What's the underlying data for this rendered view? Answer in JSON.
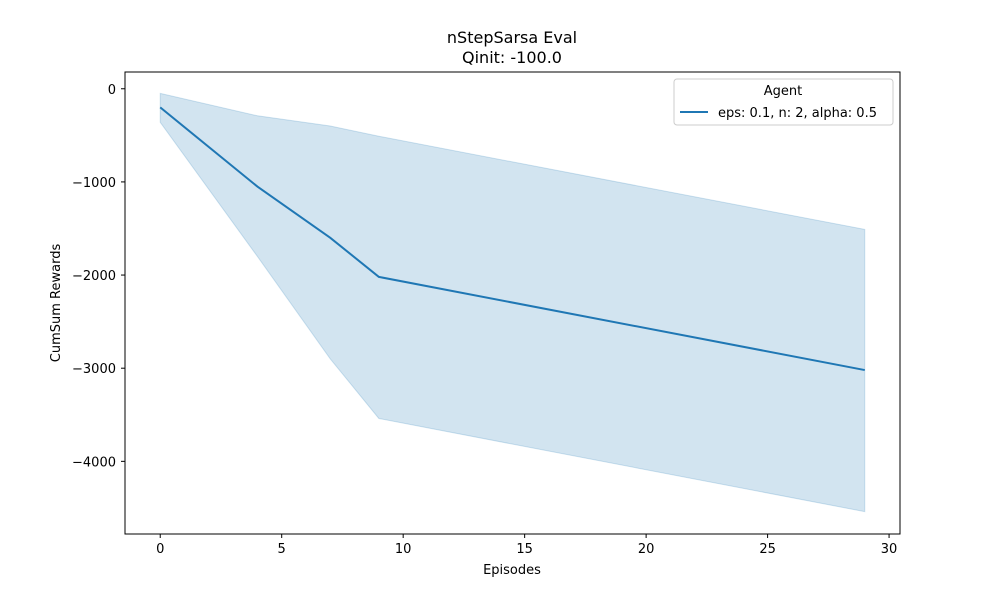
{
  "chart_data": {
    "type": "line",
    "title": "nStepSarsa Eval",
    "subtitle": "Qinit: -100.0",
    "xlabel": "Episodes",
    "ylabel": "CumSum Rewards",
    "xlim": [
      -1.45,
      30.45
    ],
    "ylim": [
      -4780,
      180
    ],
    "xticks": [
      0,
      5,
      10,
      15,
      20,
      25,
      30
    ],
    "yticks": [
      0,
      -1000,
      -2000,
      -3000,
      -4000
    ],
    "xtick_labels": [
      "0",
      "5",
      "10",
      "15",
      "20",
      "25",
      "30"
    ],
    "ytick_labels": [
      "0",
      "−1000",
      "−2000",
      "−3000",
      "−4000"
    ],
    "grid": false,
    "legend": {
      "title": "Agent",
      "placement": "top-right"
    },
    "series": [
      {
        "name": "eps: 0.1, n: 2, alpha: 0.5",
        "color": "#1f77b4",
        "x": [
          0,
          4,
          7,
          9,
          29
        ],
        "y": [
          -200,
          -1050,
          -1600,
          -2020,
          -3020
        ],
        "ci_upper": [
          -50,
          -290,
          -400,
          -510,
          -1510
        ],
        "ci_lower": [
          -360,
          -1800,
          -2900,
          -3540,
          -4540
        ]
      }
    ]
  }
}
